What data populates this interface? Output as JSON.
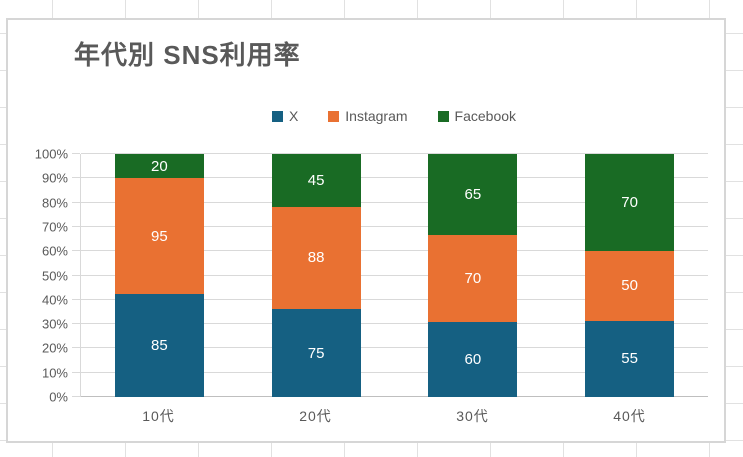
{
  "chart_data": {
    "type": "bar",
    "subtype": "stacked-100-percent",
    "title": "年代別 SNS利用率",
    "categories": [
      "10代",
      "20代",
      "30代",
      "40代"
    ],
    "series": [
      {
        "name": "X",
        "color": "#156082",
        "values": [
          85,
          75,
          60,
          55
        ]
      },
      {
        "name": "Instagram",
        "color": "#E97132",
        "values": [
          95,
          88,
          70,
          50
        ]
      },
      {
        "name": "Facebook",
        "color": "#196B24",
        "values": [
          20,
          45,
          65,
          70
        ]
      }
    ],
    "y_ticks": [
      "0%",
      "10%",
      "20%",
      "30%",
      "40%",
      "50%",
      "60%",
      "70%",
      "80%",
      "90%",
      "100%"
    ],
    "ylim": [
      0,
      100
    ],
    "legend_position": "top",
    "grid": true,
    "data_labels": true
  },
  "theme": {
    "text_color": "#595959",
    "gridline_color": "#D9D9D9",
    "axis_line_color": "#BFBFBF",
    "chart_border_color": "#D6D6D6",
    "chart_background": "#FFFFFF",
    "sheet_gridline_color": "#E1E1E1",
    "label_color": "#FFFFFF"
  }
}
